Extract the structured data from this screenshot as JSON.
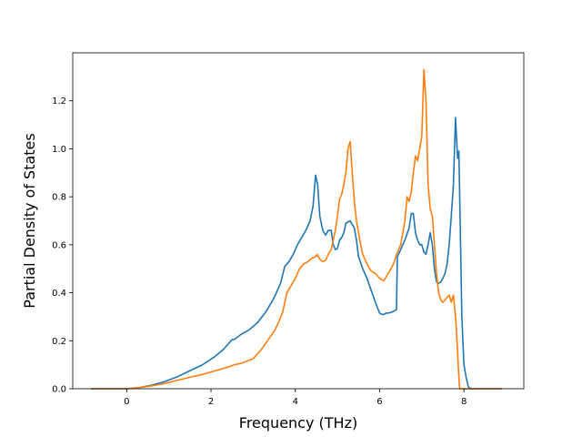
{
  "chart_data": {
    "type": "line",
    "title": "",
    "xlabel": "Frequency (THz)",
    "ylabel": "Partial Density of States",
    "xlim": [
      -1.28,
      9.42
    ],
    "ylim": [
      0,
      1.4
    ],
    "xticks": [
      0,
      2,
      4,
      6,
      8
    ],
    "xtick_labels": [
      "0",
      "2",
      "4",
      "6",
      "8"
    ],
    "yticks": [
      0.0,
      0.2,
      0.4,
      0.6,
      0.8,
      1.0,
      1.2
    ],
    "ytick_labels": [
      "0.0",
      "0.2",
      "0.4",
      "0.6",
      "0.8",
      "1.0",
      "1.2"
    ],
    "grid": false,
    "legend": "none",
    "series": [
      {
        "color": "#1f77b4",
        "x": [
          -0.85,
          0.0,
          0.3,
          0.6,
          0.9,
          1.2,
          1.5,
          1.8,
          2.1,
          2.3,
          2.45,
          2.5,
          2.55,
          2.7,
          2.9,
          3.1,
          3.3,
          3.5,
          3.65,
          3.75,
          3.85,
          3.95,
          4.05,
          4.15,
          4.25,
          4.35,
          4.42,
          4.48,
          4.53,
          4.58,
          4.65,
          4.72,
          4.78,
          4.85,
          4.9,
          4.95,
          5.0,
          5.05,
          5.1,
          5.15,
          5.2,
          5.3,
          5.4,
          5.45,
          5.5,
          5.6,
          5.7,
          5.8,
          5.9,
          6.0,
          6.05,
          6.1,
          6.15,
          6.2,
          6.3,
          6.4,
          6.42,
          6.5,
          6.6,
          6.7,
          6.75,
          6.8,
          6.85,
          6.9,
          6.95,
          7.0,
          7.05,
          7.1,
          7.15,
          7.2,
          7.25,
          7.3,
          7.35,
          7.4,
          7.45,
          7.5,
          7.55,
          7.6,
          7.65,
          7.7,
          7.75,
          7.8,
          7.85,
          7.88,
          7.92,
          7.95,
          8.0,
          8.05,
          8.1,
          8.15,
          8.2,
          8.3,
          8.5,
          8.9
        ],
        "y": [
          0.0,
          0.0,
          0.005,
          0.015,
          0.03,
          0.05,
          0.075,
          0.1,
          0.135,
          0.165,
          0.195,
          0.205,
          0.205,
          0.225,
          0.245,
          0.275,
          0.32,
          0.38,
          0.44,
          0.51,
          0.53,
          0.56,
          0.6,
          0.63,
          0.66,
          0.7,
          0.76,
          0.89,
          0.85,
          0.72,
          0.66,
          0.64,
          0.66,
          0.66,
          0.6,
          0.58,
          0.585,
          0.62,
          0.63,
          0.65,
          0.69,
          0.7,
          0.67,
          0.62,
          0.55,
          0.5,
          0.46,
          0.41,
          0.36,
          0.315,
          0.31,
          0.31,
          0.315,
          0.315,
          0.32,
          0.33,
          0.55,
          0.58,
          0.62,
          0.67,
          0.73,
          0.73,
          0.65,
          0.62,
          0.6,
          0.6,
          0.57,
          0.56,
          0.6,
          0.65,
          0.6,
          0.5,
          0.445,
          0.44,
          0.445,
          0.46,
          0.48,
          0.52,
          0.6,
          0.72,
          0.85,
          1.13,
          0.96,
          0.99,
          0.6,
          0.3,
          0.1,
          0.05,
          0.01,
          0.0,
          0.0,
          0.0,
          0.0,
          0.0
        ]
      },
      {
        "color": "#ff7f0e",
        "x": [
          -0.85,
          0.0,
          0.3,
          0.6,
          0.9,
          1.2,
          1.5,
          1.8,
          2.1,
          2.4,
          2.55,
          2.7,
          2.85,
          3.0,
          3.1,
          3.2,
          3.3,
          3.4,
          3.5,
          3.6,
          3.7,
          3.8,
          3.9,
          4.0,
          4.05,
          4.1,
          4.2,
          4.3,
          4.4,
          4.48,
          4.52,
          4.58,
          4.65,
          4.72,
          4.78,
          4.85,
          4.9,
          4.95,
          5.0,
          5.05,
          5.1,
          5.15,
          5.2,
          5.25,
          5.3,
          5.35,
          5.4,
          5.45,
          5.5,
          5.55,
          5.6,
          5.7,
          5.8,
          5.9,
          6.0,
          6.1,
          6.2,
          6.3,
          6.35,
          6.4,
          6.5,
          6.55,
          6.6,
          6.65,
          6.7,
          6.75,
          6.8,
          6.85,
          6.9,
          6.95,
          7.0,
          7.05,
          7.1,
          7.15,
          7.2,
          7.25,
          7.3,
          7.35,
          7.4,
          7.45,
          7.5,
          7.55,
          7.6,
          7.65,
          7.7,
          7.75,
          7.8,
          7.82,
          7.85,
          7.88,
          7.9,
          7.95,
          8.0,
          8.05,
          8.1,
          8.15,
          8.5,
          8.9
        ],
        "y": [
          0.0,
          0.0,
          0.005,
          0.012,
          0.022,
          0.035,
          0.048,
          0.06,
          0.075,
          0.09,
          0.1,
          0.105,
          0.115,
          0.125,
          0.145,
          0.165,
          0.19,
          0.215,
          0.24,
          0.275,
          0.32,
          0.4,
          0.43,
          0.46,
          0.48,
          0.5,
          0.52,
          0.53,
          0.545,
          0.55,
          0.56,
          0.54,
          0.53,
          0.535,
          0.56,
          0.58,
          0.62,
          0.66,
          0.72,
          0.79,
          0.81,
          0.85,
          0.9,
          1.0,
          1.03,
          0.9,
          0.78,
          0.7,
          0.65,
          0.6,
          0.56,
          0.52,
          0.49,
          0.48,
          0.46,
          0.45,
          0.48,
          0.51,
          0.53,
          0.56,
          0.6,
          0.65,
          0.7,
          0.8,
          0.78,
          0.82,
          0.9,
          0.97,
          0.95,
          1.0,
          1.05,
          1.33,
          1.2,
          0.85,
          0.75,
          0.72,
          0.6,
          0.48,
          0.4,
          0.37,
          0.36,
          0.37,
          0.38,
          0.39,
          0.36,
          0.39,
          0.3,
          0.25,
          0.15,
          0.05,
          0.0,
          0.0,
          0.0,
          0.0,
          0.0,
          0.0,
          0.0,
          0.0
        ]
      }
    ]
  }
}
